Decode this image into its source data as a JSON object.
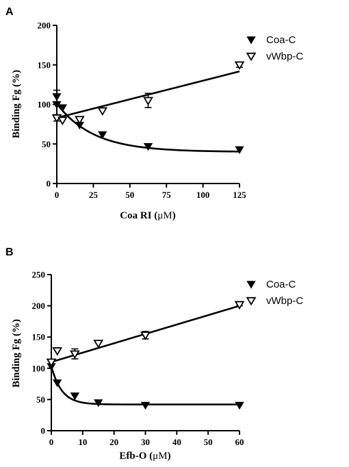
{
  "charts": [
    {
      "panel": "A",
      "type": "scatter",
      "xlabel_main": "Coa RI (",
      "xlabel_unit": "μM",
      "xlabel_end": ")",
      "ylabel": "Binding Fg (%)",
      "xlim": [
        0,
        125
      ],
      "ylim": [
        0,
        200
      ],
      "xticks": [
        0,
        25,
        50,
        75,
        100,
        125
      ],
      "yticks": [
        0,
        50,
        100,
        150,
        200
      ],
      "series": [
        {
          "name": "Coa-C",
          "marker": "filled-triangle-down",
          "points": [
            {
              "x": 0,
              "y": 110,
              "err": 8
            },
            {
              "x": 0,
              "y": 100,
              "err": 0
            },
            {
              "x": 3.9,
              "y": 96,
              "err": 0
            },
            {
              "x": 15.6,
              "y": 74,
              "err": 0
            },
            {
              "x": 31.25,
              "y": 62,
              "err": 0
            },
            {
              "x": 62.5,
              "y": 47,
              "err": 0
            },
            {
              "x": 125,
              "y": 43,
              "err": 0
            }
          ],
          "fit": {
            "kind": "exp_decay",
            "y0": 101,
            "plateau": 40,
            "k": 0.04
          }
        },
        {
          "name": "vWbp-C",
          "marker": "open-triangle-down",
          "points": [
            {
              "x": 0,
              "y": 83,
              "err": 4
            },
            {
              "x": 3.9,
              "y": 80,
              "err": 0
            },
            {
              "x": 15.6,
              "y": 81,
              "err": 0
            },
            {
              "x": 31.25,
              "y": 92,
              "err": 0
            },
            {
              "x": 62.5,
              "y": 105,
              "err": 9
            },
            {
              "x": 125,
              "y": 150,
              "err": 3
            }
          ],
          "fit": {
            "kind": "linear",
            "intercept": 83,
            "slope": 0.47
          }
        }
      ]
    },
    {
      "panel": "B",
      "type": "scatter",
      "xlabel_main": "Efb-O (",
      "xlabel_unit": "μM",
      "xlabel_end": ")",
      "ylabel": "Binding Fg (%)",
      "xlim": [
        0,
        60
      ],
      "ylim": [
        0,
        250
      ],
      "xticks": [
        0,
        10,
        20,
        30,
        40,
        50,
        60
      ],
      "yticks": [
        0,
        50,
        100,
        150,
        200,
        250
      ],
      "series": [
        {
          "name": "Coa-C",
          "marker": "filled-triangle-down",
          "points": [
            {
              "x": 0,
              "y": 103,
              "err": 0
            },
            {
              "x": 1.9,
              "y": 77,
              "err": 0
            },
            {
              "x": 7.5,
              "y": 56,
              "err": 0
            },
            {
              "x": 15,
              "y": 45,
              "err": 0
            },
            {
              "x": 30,
              "y": 41,
              "err": 0
            },
            {
              "x": 60,
              "y": 41,
              "err": 0
            }
          ],
          "fit": {
            "kind": "exp_decay",
            "y0": 103,
            "plateau": 42,
            "k": 0.3
          }
        },
        {
          "name": "vWbp-C",
          "marker": "open-triangle-down",
          "points": [
            {
              "x": 0,
              "y": 110,
              "err": 0
            },
            {
              "x": 1.9,
              "y": 128,
              "err": 0
            },
            {
              "x": 7.5,
              "y": 123,
              "err": 8
            },
            {
              "x": 15,
              "y": 140,
              "err": 0
            },
            {
              "x": 30,
              "y": 153,
              "err": 6
            },
            {
              "x": 60,
              "y": 202,
              "err": 2
            }
          ],
          "fit": {
            "kind": "linear",
            "intercept": 110,
            "slope": 1.5
          }
        }
      ]
    }
  ]
}
